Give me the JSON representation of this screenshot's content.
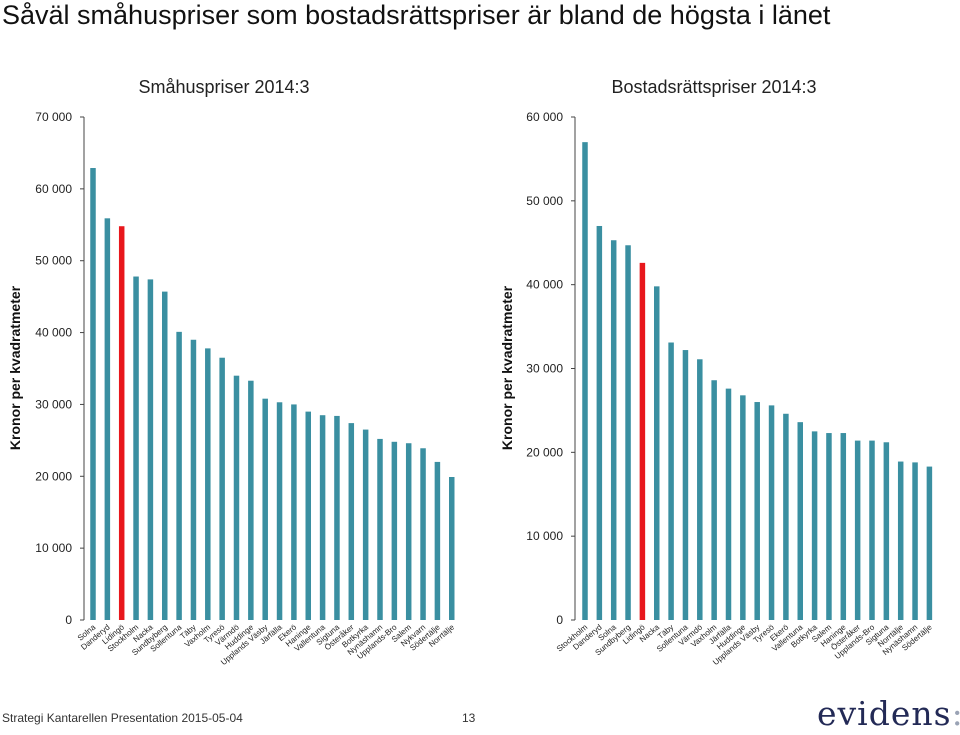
{
  "page": {
    "title": "Såväl småhuspriser som bostadsrättspriser är bland de högsta i länet",
    "footer": "Strategi  Kantarellen  Presentation 2015-05-04",
    "page_number": "13",
    "logo": {
      "text": "evidens",
      "suffix": ":"
    }
  },
  "colors": {
    "bar": "#3a8fa1",
    "highlight": "#e8171c",
    "axis": "#444444"
  },
  "chart_data": [
    {
      "type": "bar",
      "title": "Småhuspriser 2014:3",
      "ylabel": "Kronor per kvadratmeter",
      "ylim": [
        0,
        70000
      ],
      "yticks": [
        0,
        10000,
        20000,
        30000,
        40000,
        50000,
        60000,
        70000
      ],
      "ytick_labels": [
        "0",
        "10 000",
        "20 000",
        "30 000",
        "40 000",
        "50 000",
        "60 000",
        "70 000"
      ],
      "highlight": "Lidingö",
      "categories": [
        "Solna",
        "Danderyd",
        "Lidingö",
        "Stockholm",
        "Nacka",
        "Sundbyberg",
        "Sollentuna",
        "Täby",
        "Vaxholm",
        "Tyresö",
        "Värmdö",
        "Huddinge",
        "Upplands Väsby",
        "Järfälla",
        "Ekerö",
        "Haninge",
        "Vallentuna",
        "Sigtuna",
        "Österåker",
        "Botkyrka",
        "Nynäshamn",
        "Upplands-Bro",
        "Salem",
        "Nykvarn",
        "Södertälje",
        "Norrtälje"
      ],
      "values": [
        62900,
        55900,
        54800,
        47800,
        47400,
        45700,
        40100,
        39000,
        37800,
        36500,
        34000,
        33300,
        30800,
        30300,
        30000,
        29000,
        28500,
        28400,
        27400,
        26500,
        25200,
        24800,
        24600,
        23900,
        22000,
        19900
      ]
    },
    {
      "type": "bar",
      "title": "Bostadsrättspriser 2014:3",
      "ylabel": "Kronor per kvadratmeter",
      "ylim": [
        0,
        60000
      ],
      "yticks": [
        0,
        10000,
        20000,
        30000,
        40000,
        50000,
        60000
      ],
      "ytick_labels": [
        "0",
        "10 000",
        "20 000",
        "30 000",
        "40 000",
        "50 000",
        "60 000"
      ],
      "highlight": "Lidingö",
      "categories": [
        "Stockholm",
        "Danderyd",
        "Solna",
        "Sundbyberg",
        "Lidingö",
        "Nacka",
        "Täby",
        "Sollentuna",
        "Värmdö",
        "Vaxholm",
        "Järfälla",
        "Huddinge",
        "Upplands Väsby",
        "Tyresö",
        "Ekerö",
        "Vallentuna",
        "Botkyrka",
        "Salem",
        "Haninge",
        "Österåker",
        "Upplands-Bro",
        "Sigtuna",
        "Norrtälje",
        "Nynäshamn",
        "Södertälje"
      ],
      "values": [
        57000,
        47000,
        45300,
        44700,
        42600,
        39800,
        33100,
        32200,
        31100,
        28600,
        27600,
        26800,
        26000,
        25600,
        24600,
        23600,
        22500,
        22300,
        22300,
        21400,
        21400,
        21200,
        18900,
        18800,
        18300
      ]
    }
  ]
}
